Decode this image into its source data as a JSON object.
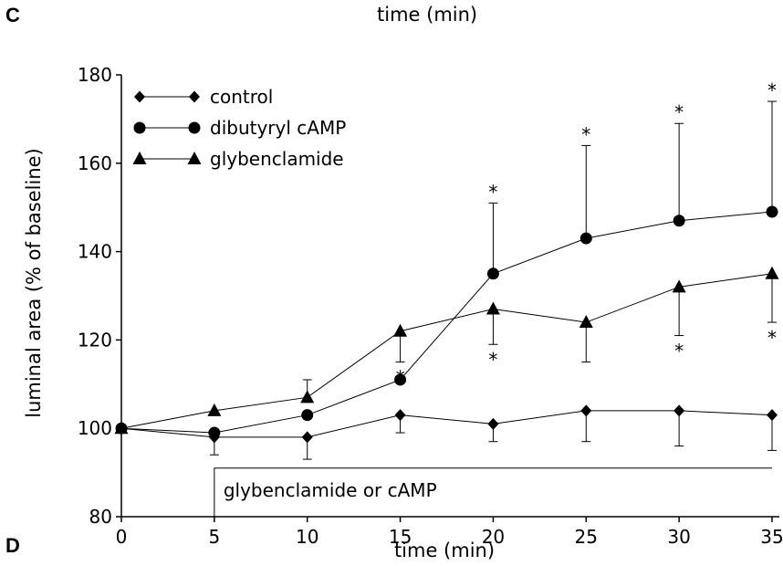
{
  "panel_letters": {
    "top": "C",
    "bottom": "D"
  },
  "top_title": "time (min)",
  "chart_data": {
    "type": "line",
    "title": "",
    "xlabel": "time (min)",
    "ylabel": "luminal area (% of baseline)",
    "xlim": [
      0,
      35
    ],
    "ylim": [
      80,
      180
    ],
    "x_ticks": [
      "0",
      "5",
      "10",
      "15",
      "20",
      "25",
      "30",
      "35"
    ],
    "y_ticks": [
      "80",
      "100",
      "120",
      "140",
      "160",
      "180"
    ],
    "legend_position": "top-left",
    "grid": false,
    "x": [
      0,
      5,
      10,
      15,
      20,
      25,
      30,
      35
    ],
    "series": [
      {
        "name": "control",
        "marker": "diamond",
        "values": [
          100,
          98,
          98,
          103,
          101,
          104,
          104,
          103
        ],
        "error": [
          0,
          4,
          5,
          4,
          4,
          7,
          8,
          8
        ],
        "error_dir": [
          "down",
          "down",
          "down",
          "down",
          "down",
          "down",
          "down",
          "down"
        ],
        "significant": [
          false,
          false,
          false,
          false,
          false,
          false,
          false,
          false
        ]
      },
      {
        "name": "dibutyryl cAMP",
        "marker": "circle",
        "values": [
          100,
          99,
          103,
          111,
          135,
          143,
          147,
          149
        ],
        "error": [
          0,
          0,
          0,
          0,
          16,
          21,
          22,
          25
        ],
        "error_dir": [
          "up",
          "up",
          "up",
          "up",
          "up",
          "up",
          "up",
          "up"
        ],
        "significant": [
          false,
          false,
          false,
          false,
          true,
          true,
          true,
          true
        ]
      },
      {
        "name": "glybenclamide",
        "marker": "triangle",
        "values": [
          100,
          104,
          107,
          122,
          127,
          124,
          132,
          135
        ],
        "error": [
          0,
          0,
          4,
          7,
          8,
          9,
          11,
          11
        ],
        "error_dir": [
          "up",
          "up",
          "up",
          "down",
          "down",
          "down",
          "down",
          "down"
        ],
        "significant": [
          false,
          false,
          false,
          true,
          true,
          false,
          true,
          true
        ]
      }
    ],
    "treatment_bar": {
      "label": "glybenclamide or cAMP",
      "x_start": 5,
      "x_end": 35,
      "y": 91
    }
  }
}
